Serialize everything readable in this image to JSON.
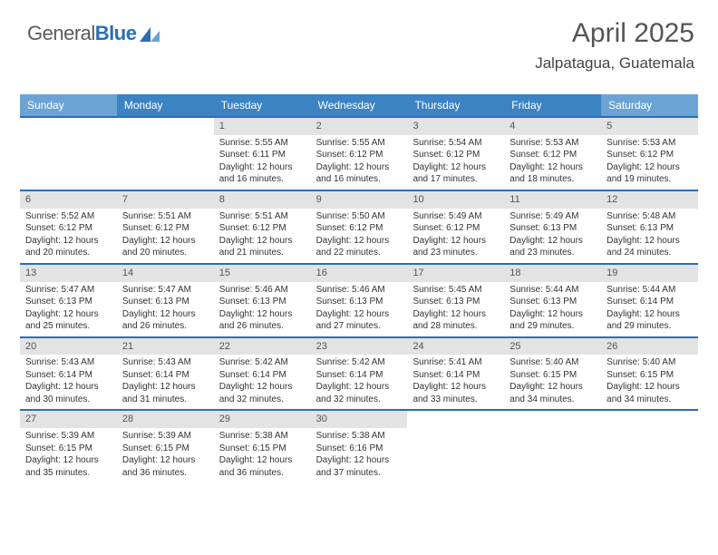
{
  "logo": {
    "text_general": "General",
    "text_blue": "Blue"
  },
  "header": {
    "month_title": "April 2025",
    "location": "Jalpatagua, Guatemala"
  },
  "colors": {
    "header_primary": "#3c83c4",
    "header_secondary": "#6aa3d4",
    "row_border": "#2a6fb5",
    "daynum_bg": "#e3e3e3",
    "header_text": "#ffffff"
  },
  "days_of_week": [
    "Sunday",
    "Monday",
    "Tuesday",
    "Wednesday",
    "Thursday",
    "Friday",
    "Saturday"
  ],
  "weeks": [
    [
      null,
      null,
      {
        "n": "1",
        "sr": "5:55 AM",
        "ss": "6:11 PM",
        "dl": "12 hours and 16 minutes."
      },
      {
        "n": "2",
        "sr": "5:55 AM",
        "ss": "6:12 PM",
        "dl": "12 hours and 16 minutes."
      },
      {
        "n": "3",
        "sr": "5:54 AM",
        "ss": "6:12 PM",
        "dl": "12 hours and 17 minutes."
      },
      {
        "n": "4",
        "sr": "5:53 AM",
        "ss": "6:12 PM",
        "dl": "12 hours and 18 minutes."
      },
      {
        "n": "5",
        "sr": "5:53 AM",
        "ss": "6:12 PM",
        "dl": "12 hours and 19 minutes."
      }
    ],
    [
      {
        "n": "6",
        "sr": "5:52 AM",
        "ss": "6:12 PM",
        "dl": "12 hours and 20 minutes."
      },
      {
        "n": "7",
        "sr": "5:51 AM",
        "ss": "6:12 PM",
        "dl": "12 hours and 20 minutes."
      },
      {
        "n": "8",
        "sr": "5:51 AM",
        "ss": "6:12 PM",
        "dl": "12 hours and 21 minutes."
      },
      {
        "n": "9",
        "sr": "5:50 AM",
        "ss": "6:12 PM",
        "dl": "12 hours and 22 minutes."
      },
      {
        "n": "10",
        "sr": "5:49 AM",
        "ss": "6:12 PM",
        "dl": "12 hours and 23 minutes."
      },
      {
        "n": "11",
        "sr": "5:49 AM",
        "ss": "6:13 PM",
        "dl": "12 hours and 23 minutes."
      },
      {
        "n": "12",
        "sr": "5:48 AM",
        "ss": "6:13 PM",
        "dl": "12 hours and 24 minutes."
      }
    ],
    [
      {
        "n": "13",
        "sr": "5:47 AM",
        "ss": "6:13 PM",
        "dl": "12 hours and 25 minutes."
      },
      {
        "n": "14",
        "sr": "5:47 AM",
        "ss": "6:13 PM",
        "dl": "12 hours and 26 minutes."
      },
      {
        "n": "15",
        "sr": "5:46 AM",
        "ss": "6:13 PM",
        "dl": "12 hours and 26 minutes."
      },
      {
        "n": "16",
        "sr": "5:46 AM",
        "ss": "6:13 PM",
        "dl": "12 hours and 27 minutes."
      },
      {
        "n": "17",
        "sr": "5:45 AM",
        "ss": "6:13 PM",
        "dl": "12 hours and 28 minutes."
      },
      {
        "n": "18",
        "sr": "5:44 AM",
        "ss": "6:13 PM",
        "dl": "12 hours and 29 minutes."
      },
      {
        "n": "19",
        "sr": "5:44 AM",
        "ss": "6:14 PM",
        "dl": "12 hours and 29 minutes."
      }
    ],
    [
      {
        "n": "20",
        "sr": "5:43 AM",
        "ss": "6:14 PM",
        "dl": "12 hours and 30 minutes."
      },
      {
        "n": "21",
        "sr": "5:43 AM",
        "ss": "6:14 PM",
        "dl": "12 hours and 31 minutes."
      },
      {
        "n": "22",
        "sr": "5:42 AM",
        "ss": "6:14 PM",
        "dl": "12 hours and 32 minutes."
      },
      {
        "n": "23",
        "sr": "5:42 AM",
        "ss": "6:14 PM",
        "dl": "12 hours and 32 minutes."
      },
      {
        "n": "24",
        "sr": "5:41 AM",
        "ss": "6:14 PM",
        "dl": "12 hours and 33 minutes."
      },
      {
        "n": "25",
        "sr": "5:40 AM",
        "ss": "6:15 PM",
        "dl": "12 hours and 34 minutes."
      },
      {
        "n": "26",
        "sr": "5:40 AM",
        "ss": "6:15 PM",
        "dl": "12 hours and 34 minutes."
      }
    ],
    [
      {
        "n": "27",
        "sr": "5:39 AM",
        "ss": "6:15 PM",
        "dl": "12 hours and 35 minutes."
      },
      {
        "n": "28",
        "sr": "5:39 AM",
        "ss": "6:15 PM",
        "dl": "12 hours and 36 minutes."
      },
      {
        "n": "29",
        "sr": "5:38 AM",
        "ss": "6:15 PM",
        "dl": "12 hours and 36 minutes."
      },
      {
        "n": "30",
        "sr": "5:38 AM",
        "ss": "6:16 PM",
        "dl": "12 hours and 37 minutes."
      },
      null,
      null,
      null
    ]
  ],
  "labels": {
    "sunrise": "Sunrise:",
    "sunset": "Sunset:",
    "daylight": "Daylight:"
  }
}
